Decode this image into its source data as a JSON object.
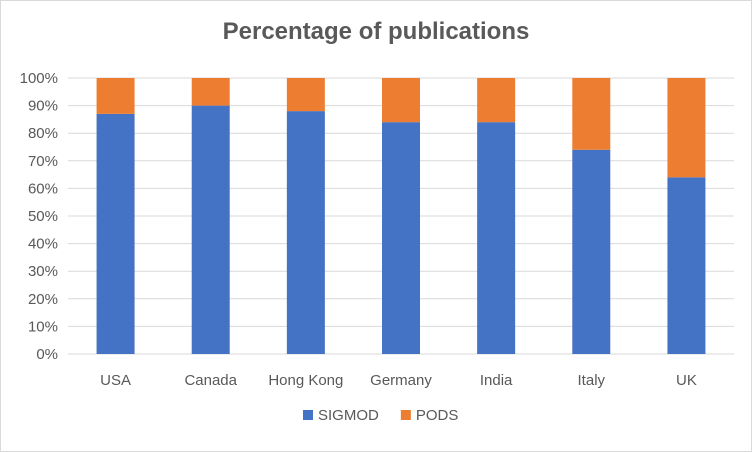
{
  "chart_data": {
    "type": "bar",
    "stacked": true,
    "title": "Percentage of publications",
    "categories": [
      "USA",
      "Canada",
      "Hong Kong",
      "Germany",
      "India",
      "Italy",
      "UK"
    ],
    "series": [
      {
        "name": "SIGMOD",
        "color": "#4472c4",
        "values": [
          87,
          90,
          88,
          84,
          84,
          74,
          64
        ]
      },
      {
        "name": "PODS",
        "color": "#ed7d31",
        "values": [
          13,
          10,
          12,
          16,
          16,
          26,
          36
        ]
      }
    ],
    "ylim": [
      0,
      100
    ],
    "yticks": [
      "0%",
      "10%",
      "20%",
      "30%",
      "40%",
      "50%",
      "60%",
      "70%",
      "80%",
      "90%",
      "100%"
    ],
    "xlabel": "",
    "ylabel": "",
    "grid": true,
    "legend": "bottom"
  }
}
